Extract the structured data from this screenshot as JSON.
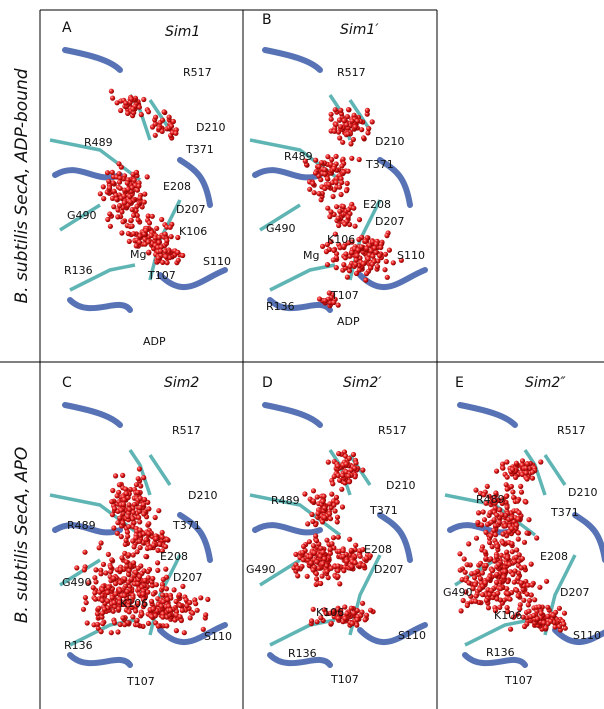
{
  "row_labels": [
    "B. subtilis SecA, ADP-bound",
    "B. subtilis SecA, APO"
  ],
  "panels": [
    {
      "letter": "A",
      "title": "Sim1",
      "labels": [
        "R517",
        "D210",
        "T371",
        "R489",
        "E208",
        "G490",
        "D207",
        "K106",
        "Mg",
        "R136",
        "T107",
        "S110",
        "ADP"
      ]
    },
    {
      "letter": "B",
      "title": "Sim1′",
      "labels": [
        "R517",
        "D210",
        "R489",
        "T371",
        "E208",
        "G490",
        "D207",
        "K106",
        "Mg",
        "S110",
        "R136",
        "T107",
        "ADP"
      ]
    },
    {
      "letter": "C",
      "title": "Sim2",
      "labels": [
        "R517",
        "D210",
        "R489",
        "T371",
        "E208",
        "G490",
        "D207",
        "K106",
        "R136",
        "S110",
        "T107"
      ]
    },
    {
      "letter": "D",
      "title": "Sim2′",
      "labels": [
        "R517",
        "R489",
        "D210",
        "T371",
        "E208",
        "G490",
        "D207",
        "K106",
        "R136",
        "S110",
        "T107"
      ]
    },
    {
      "letter": "E",
      "title": "Sim2″",
      "labels": [
        "R517",
        "R489",
        "D210",
        "T371",
        "E208",
        "G490",
        "D207",
        "K106",
        "R136",
        "S110",
        "T107"
      ]
    }
  ]
}
